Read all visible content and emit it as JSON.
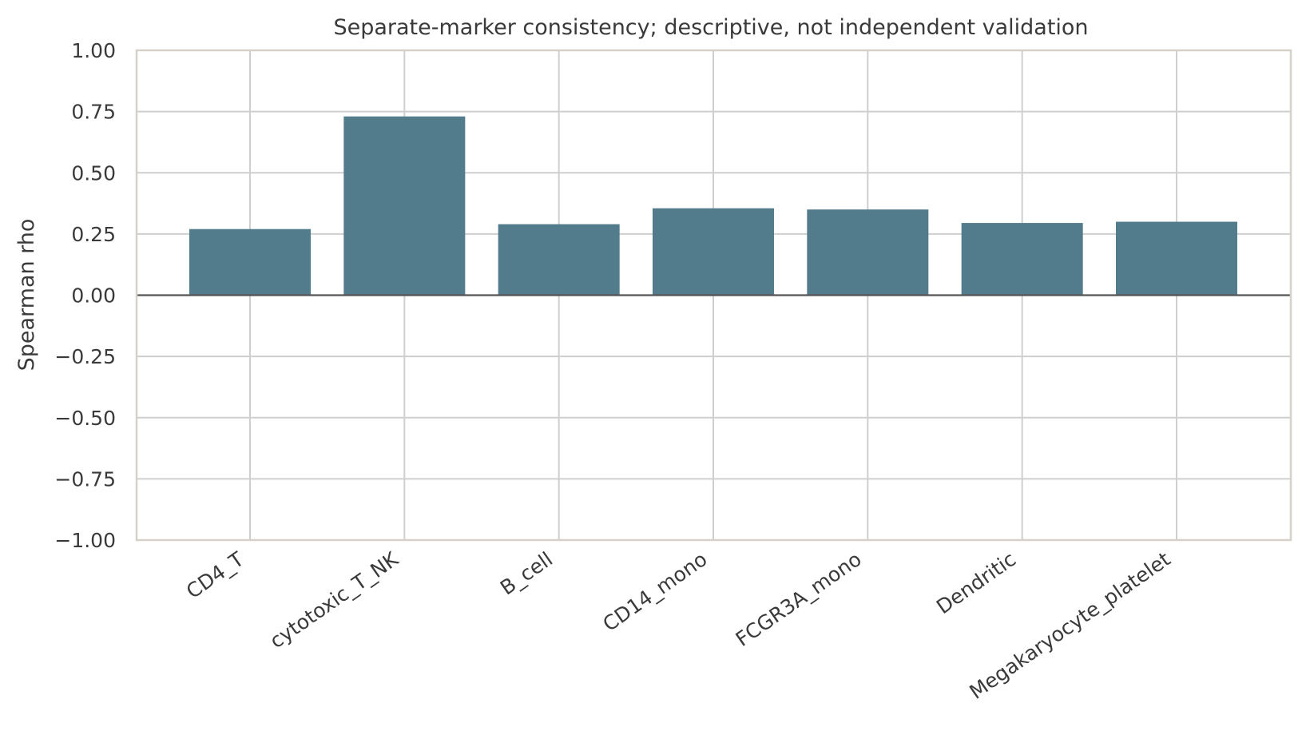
{
  "chart_data": {
    "type": "bar",
    "title": "Separate-marker consistency; descriptive, not independent validation",
    "xlabel": "",
    "ylabel": "Spearman rho",
    "categories": [
      "CD4_T",
      "cytotoxic_T_NK",
      "B_cell",
      "CD14_mono",
      "FCGR3A_mono",
      "Dendritic",
      "Megakaryocyte_platelet"
    ],
    "values": [
      0.27,
      0.73,
      0.29,
      0.355,
      0.35,
      0.295,
      0.3
    ],
    "ylim": [
      -1.0,
      1.0
    ],
    "yticks": [
      1.0,
      0.75,
      0.5,
      0.25,
      0.0,
      -0.25,
      -0.5,
      -0.75,
      -1.0
    ],
    "ytick_labels": [
      "1.00",
      "0.75",
      "0.50",
      "0.25",
      "0.00",
      "−0.25",
      "−0.50",
      "−0.75",
      "−1.00"
    ],
    "grid": true,
    "zero_line": true,
    "colors": {
      "bar": "#527b8b",
      "grid": "#cfcfcf",
      "axes_frame": "#d5d1c8",
      "zero_line": "#555555",
      "text": "#3a3a3a"
    }
  }
}
